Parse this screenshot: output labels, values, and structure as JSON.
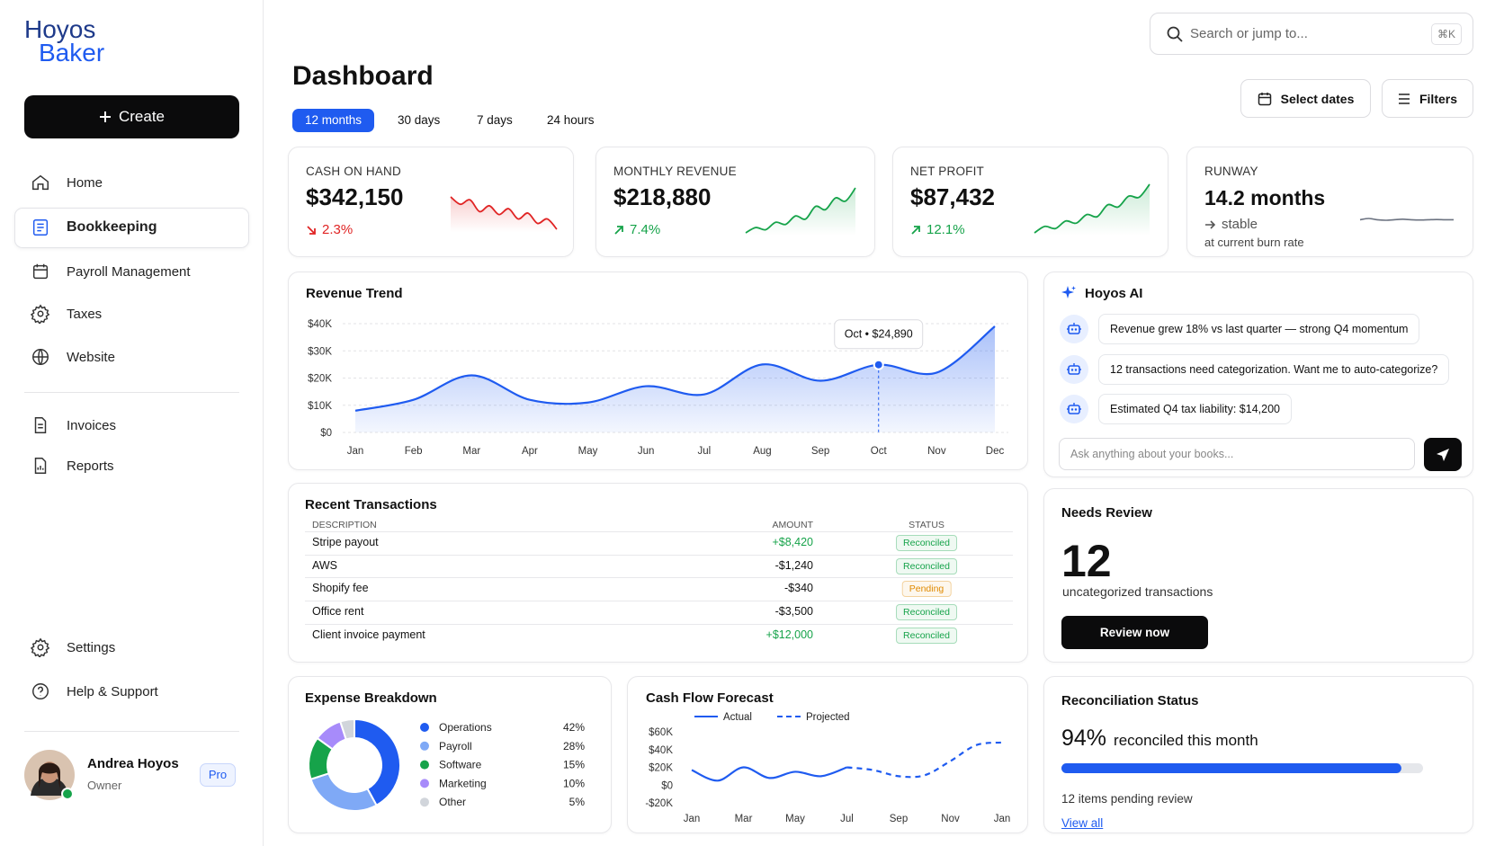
{
  "sidebar": {
    "logo": [
      "Hoyos",
      "Baker"
    ],
    "create": "Create",
    "nav": [
      "Home",
      "Bookkeeping",
      "Payroll Management",
      "Taxes",
      "Website"
    ],
    "nav2": [
      "Invoices",
      "Reports"
    ],
    "footer_nav": [
      "Settings",
      "Help & Support"
    ],
    "user": {
      "name": "Andrea Hoyos",
      "role": "Owner",
      "badge": "Pro"
    }
  },
  "header": {
    "title": "Dashboard",
    "tabs": [
      "12 months",
      "30 days",
      "7 days",
      "24 hours"
    ],
    "search": "Search or jump to...",
    "shortcut": "⌘K",
    "buttons": [
      "Select dates",
      "Filters"
    ]
  },
  "kpis": [
    {
      "label": "CASH ON HAND",
      "value": "$342,150",
      "change": "2.3%",
      "color": "#e02424",
      "trend": [
        9,
        8,
        8.6,
        7,
        7.8,
        6.6,
        7.4,
        6,
        6.8,
        5.4,
        6,
        4.6
      ]
    },
    {
      "label": "MONTHLY REVENUE",
      "value": "$218,880",
      "change": "7.4%",
      "color": "#16a34a",
      "trend": [
        2,
        3,
        2.6,
        4,
        3.6,
        5.2,
        4.6,
        7,
        6.4,
        8.6,
        8,
        10.5
      ]
    },
    {
      "label": "NET PROFIT",
      "value": "$87,432",
      "change": "12.1%",
      "color": "#16a34a",
      "trend": [
        2,
        3.2,
        2.8,
        4.2,
        3.8,
        5.4,
        5,
        7.2,
        6.8,
        8.8,
        8.6,
        11
      ]
    },
    {
      "label": "RUNWAY",
      "value": "14.2 months",
      "change": "stable",
      "note": "at current burn rate",
      "color": "#6b7280",
      "trend": [
        14.2,
        14.25,
        14.2,
        14.18,
        14.2,
        14.22,
        14.2,
        14.19,
        14.2,
        14.21,
        14.2,
        14.2
      ]
    }
  ],
  "chart_data": [
    {
      "type": "line",
      "title": "Revenue Trend",
      "categories": [
        "Jan",
        "Feb",
        "Mar",
        "Apr",
        "May",
        "Jun",
        "Jul",
        "Aug",
        "Sep",
        "Oct",
        "Nov",
        "Dec"
      ],
      "values": [
        8000,
        12000,
        21000,
        12000,
        11000,
        17000,
        14000,
        25000,
        19000,
        24890,
        22000,
        39000
      ],
      "value_labels": [
        null,
        null,
        null,
        null,
        null,
        null,
        null,
        null,
        null,
        "Oct • $24,890",
        null,
        null
      ],
      "color": "#1f5bf0",
      "ylim": [
        0,
        40000
      ],
      "yticks": [
        {
          "value": 0,
          "label": "$0"
        },
        {
          "value": 10000,
          "label": "$10K"
        },
        {
          "value": 20000,
          "label": "$20K"
        },
        {
          "value": 30000,
          "label": "$30K"
        },
        {
          "value": 40000,
          "label": "$40K"
        }
      ],
      "grid": true
    },
    {
      "type": "pie",
      "title": "Expense Breakdown",
      "donut": true,
      "categories": [
        "Operations",
        "Payroll",
        "Software",
        "Marketing",
        "Other"
      ],
      "values": [
        42,
        28,
        15,
        10,
        5
      ],
      "value_labels": [
        "42%",
        "28%",
        "15%",
        "10%",
        "5%"
      ],
      "colors": [
        "#1f5bf0",
        "#7fa9f6",
        "#16a34a",
        "#a78bfa",
        "#d1d5db"
      ]
    },
    {
      "type": "line",
      "title": "Cash Flow Forecast",
      "categories": [
        "Jan",
        null,
        "Mar",
        null,
        "May",
        null,
        "Jul",
        null,
        "Sep",
        null,
        "Nov",
        null,
        "Jan"
      ],
      "series": [
        {
          "name": "Actual",
          "color": "#1f5bf0",
          "dashed": false,
          "values": [
            17000,
            5000,
            20000,
            8000,
            15000,
            10000,
            20000,
            null,
            null,
            null,
            null,
            null,
            null
          ]
        },
        {
          "name": "Projected",
          "color": "#1f5bf0",
          "dashed": true,
          "values": [
            null,
            null,
            null,
            null,
            null,
            null,
            20000,
            17000,
            10000,
            11000,
            27000,
            45000,
            48000
          ]
        }
      ],
      "ylim": [
        -20000,
        60000
      ],
      "yticks": [
        {
          "value": -20000,
          "label": "-$20K"
        },
        {
          "value": 0,
          "label": "$0"
        },
        {
          "value": 20000,
          "label": "$20K"
        },
        {
          "value": 40000,
          "label": "$40K"
        },
        {
          "value": 60000,
          "label": "$60K"
        }
      ],
      "grid": false
    }
  ],
  "ai": {
    "title": "Hoyos AI",
    "messages": [
      "Revenue grew 18% vs last quarter — strong Q4 momentum",
      "12 transactions need categorization. Want me to auto-categorize?",
      "Estimated Q4 tax liability: $14,200"
    ],
    "input": "Ask anything about your books..."
  },
  "transactions": {
    "title": "Recent Transactions",
    "columns": [
      "DESCRIPTION",
      "AMOUNT",
      "STATUS"
    ],
    "rows": [
      {
        "description": "Stripe payout",
        "amount": "+$8,420",
        "status": "Reconciled",
        "amount_color": "#16a34a",
        "status_color": "#16a34a"
      },
      {
        "description": "AWS",
        "amount": "-$1,240",
        "status": "Reconciled",
        "amount_color": "#111111",
        "status_color": "#16a34a"
      },
      {
        "description": "Shopify fee",
        "amount": "-$340",
        "status": "Pending",
        "amount_color": "#111111",
        "status_color": "#e08a00"
      },
      {
        "description": "Office rent",
        "amount": "-$3,500",
        "status": "Reconciled",
        "amount_color": "#111111",
        "status_color": "#16a34a"
      },
      {
        "description": "Client invoice payment",
        "amount": "+$12,000",
        "status": "Reconciled",
        "amount_color": "#16a34a",
        "status_color": "#16a34a"
      }
    ]
  },
  "needs_review": {
    "title": "Needs Review",
    "count": 12,
    "label": "uncategorized transactions",
    "button": "Review now"
  },
  "reconciliation": {
    "title": "Reconciliation Status",
    "value": 94,
    "value_label": "94%",
    "xlim": [
      0,
      100
    ],
    "label": "reconciled this month",
    "pending": "12 items pending review",
    "link": "View all"
  }
}
